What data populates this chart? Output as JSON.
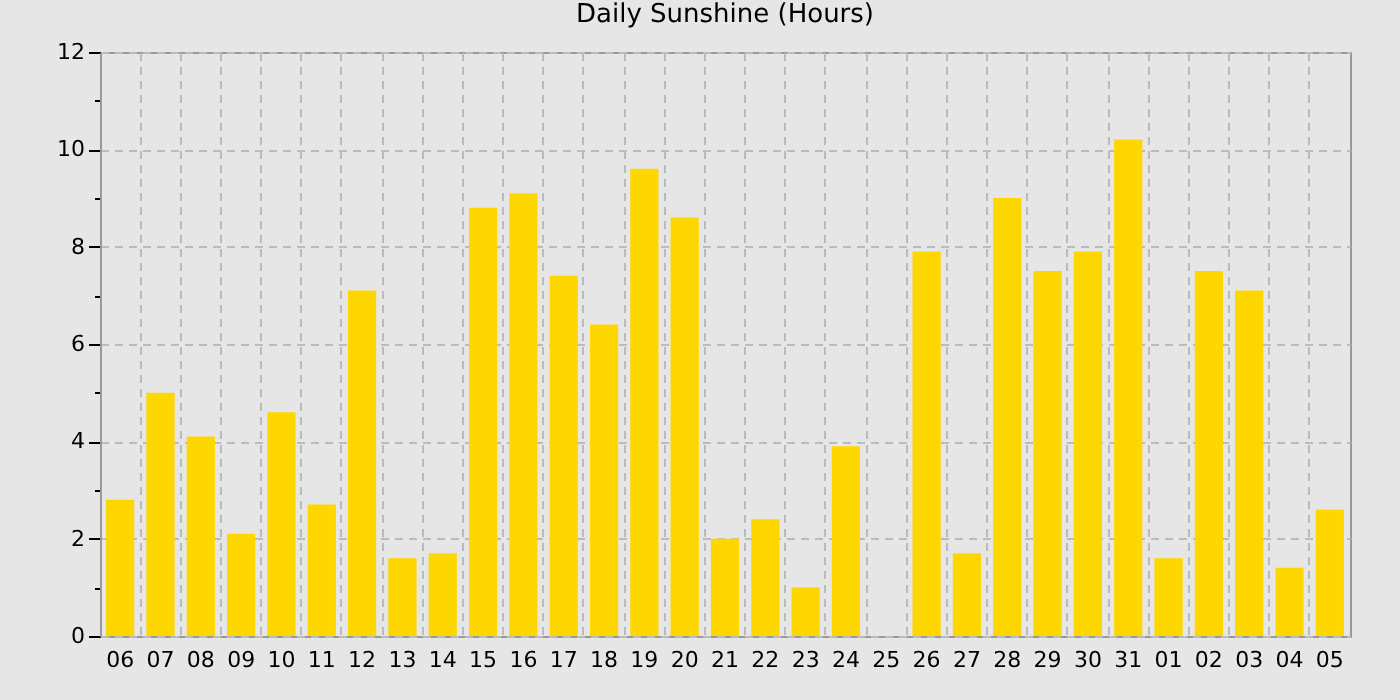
{
  "chart_data": {
    "type": "bar",
    "title": "Daily Sunshine (Hours)",
    "categories": [
      "06",
      "07",
      "08",
      "09",
      "10",
      "11",
      "12",
      "13",
      "14",
      "15",
      "16",
      "17",
      "18",
      "19",
      "20",
      "21",
      "22",
      "23",
      "24",
      "25",
      "26",
      "27",
      "28",
      "29",
      "30",
      "31",
      "01",
      "02",
      "03",
      "04",
      "05"
    ],
    "values": [
      2.8,
      5.0,
      4.1,
      2.1,
      4.6,
      2.7,
      7.1,
      1.6,
      1.7,
      8.8,
      9.1,
      7.4,
      6.4,
      9.6,
      8.6,
      2.0,
      2.4,
      1.0,
      3.9,
      0,
      7.9,
      1.7,
      9.0,
      7.5,
      7.9,
      10.2,
      1.6,
      7.5,
      7.1,
      1.4,
      2.6
    ],
    "color": "#ffd700",
    "ylim": [
      0,
      12
    ],
    "yticks": [
      0,
      {
        "value": 1,
        "label": null
      },
      2,
      {
        "value": 3,
        "label": null
      },
      4,
      {
        "value": 5,
        "label": null
      },
      6,
      {
        "value": 7,
        "label": null
      },
      8,
      {
        "value": 9,
        "label": null
      },
      10,
      {
        "value": 11,
        "label": null
      },
      12
    ],
    "grid": true
  }
}
